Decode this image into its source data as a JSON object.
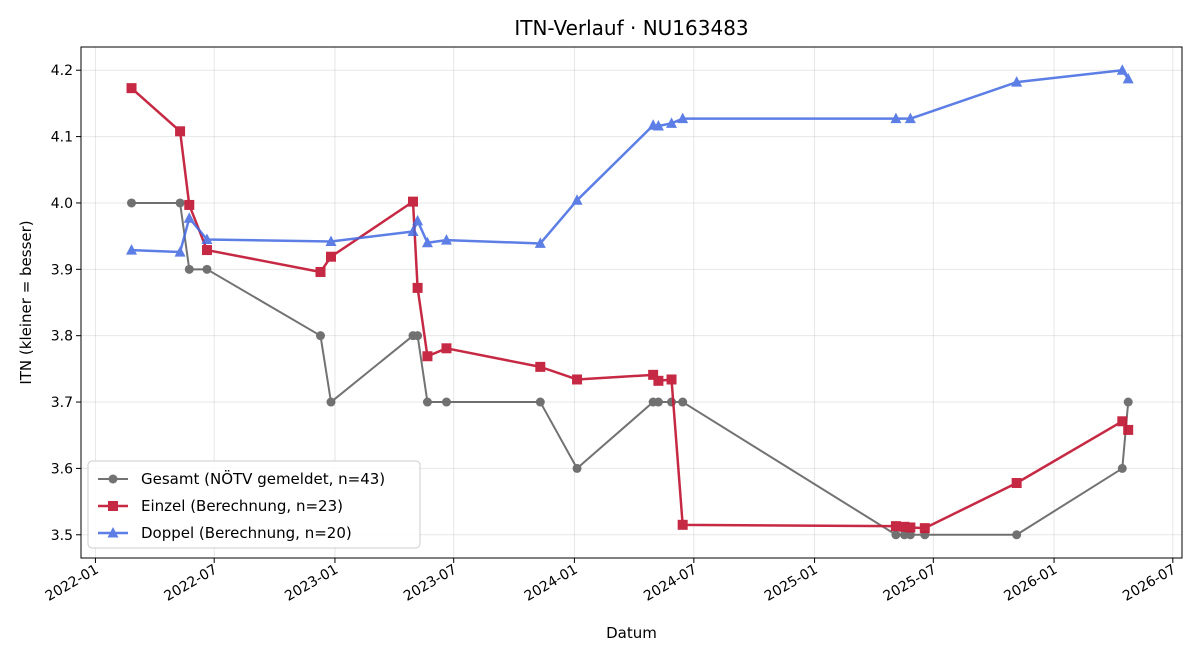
{
  "chart_data": {
    "type": "line",
    "title": "ITN-Verlauf · NU163483",
    "xlabel": "Datum",
    "ylabel": "ITN  (kleiner = besser)",
    "x_range": [
      "2021-12-10",
      "2026-07-15"
    ],
    "ylim": [
      3.465,
      4.235
    ],
    "yticks": [
      3.5,
      3.6,
      3.7,
      3.8,
      3.9,
      4.0,
      4.1,
      4.2
    ],
    "ytick_labels": [
      "3.5",
      "3.6",
      "3.7",
      "3.8",
      "3.9",
      "4.0",
      "4.1",
      "4.2"
    ],
    "xticks": [
      "2022-01-01",
      "2022-07-01",
      "2023-01-01",
      "2023-07-01",
      "2024-01-01",
      "2024-07-01",
      "2025-01-01",
      "2025-07-01",
      "2026-01-01",
      "2026-07-01"
    ],
    "xtick_labels": [
      "2022-01",
      "2022-07",
      "2023-01",
      "2023-07",
      "2024-01",
      "2024-07",
      "2025-01",
      "2025-07",
      "2026-01",
      "2026-07"
    ],
    "grid": true,
    "legend_position": "lower-left",
    "series": [
      {
        "name": "Gesamt (NÖTV gemeldet, n=43)",
        "color": "#444444",
        "marker": "circle",
        "points": [
          [
            "2022-02-25",
            4.0
          ],
          [
            "2022-05-10",
            4.0
          ],
          [
            "2022-05-24",
            3.9
          ],
          [
            "2022-06-20",
            3.9
          ],
          [
            "2022-12-10",
            3.8
          ],
          [
            "2022-12-26",
            3.7
          ],
          [
            "2023-04-30",
            3.8
          ],
          [
            "2023-05-07",
            3.8
          ],
          [
            "2023-05-22",
            3.7
          ],
          [
            "2023-06-20",
            3.7
          ],
          [
            "2023-11-10",
            3.7
          ],
          [
            "2024-01-05",
            3.6
          ],
          [
            "2024-04-30",
            3.7
          ],
          [
            "2024-05-08",
            3.7
          ],
          [
            "2024-05-28",
            3.7
          ],
          [
            "2024-06-14",
            3.7
          ],
          [
            "2025-05-05",
            3.5
          ],
          [
            "2025-05-18",
            3.5
          ],
          [
            "2025-05-27",
            3.5
          ],
          [
            "2025-06-18",
            3.5
          ],
          [
            "2025-11-05",
            3.5
          ],
          [
            "2026-04-15",
            3.6
          ],
          [
            "2026-04-24",
            3.7
          ]
        ]
      },
      {
        "name": "Einzel (Berechnung, n=23)",
        "color": "#c41e3a",
        "marker": "square",
        "points": [
          [
            "2022-02-25",
            4.173
          ],
          [
            "2022-05-10",
            4.108
          ],
          [
            "2022-05-24",
            3.997
          ],
          [
            "2022-06-20",
            3.929
          ],
          [
            "2022-12-10",
            3.896
          ],
          [
            "2022-12-26",
            3.919
          ],
          [
            "2023-04-30",
            4.002
          ],
          [
            "2023-05-07",
            3.872
          ],
          [
            "2023-05-22",
            3.769
          ],
          [
            "2023-06-20",
            3.781
          ],
          [
            "2023-11-10",
            3.753
          ],
          [
            "2024-01-05",
            3.734
          ],
          [
            "2024-04-30",
            3.741
          ],
          [
            "2024-05-08",
            3.732
          ],
          [
            "2024-05-28",
            3.734
          ],
          [
            "2024-06-14",
            3.515
          ],
          [
            "2025-05-05",
            3.513
          ],
          [
            "2025-05-18",
            3.512
          ],
          [
            "2025-05-27",
            3.511
          ],
          [
            "2025-06-18",
            3.51
          ],
          [
            "2025-11-05",
            3.578
          ],
          [
            "2026-04-15",
            3.671
          ],
          [
            "2026-04-24",
            3.658
          ]
        ]
      },
      {
        "name": "Doppel (Berechnung, n=20)",
        "color": "#4169e1",
        "marker": "triangle",
        "points": [
          [
            "2022-02-25",
            3.929
          ],
          [
            "2022-05-10",
            3.926
          ],
          [
            "2022-05-24",
            3.977
          ],
          [
            "2022-06-20",
            3.945
          ],
          [
            "2022-12-26",
            3.942
          ],
          [
            "2023-04-30",
            3.957
          ],
          [
            "2023-05-07",
            3.973
          ],
          [
            "2023-05-22",
            3.94
          ],
          [
            "2023-06-20",
            3.944
          ],
          [
            "2023-11-10",
            3.939
          ],
          [
            "2024-01-05",
            4.004
          ],
          [
            "2024-04-30",
            4.117
          ],
          [
            "2024-05-08",
            4.116
          ],
          [
            "2024-05-28",
            4.12
          ],
          [
            "2024-06-14",
            4.127
          ],
          [
            "2025-05-05",
            4.127
          ],
          [
            "2025-05-27",
            4.127
          ],
          [
            "2025-11-05",
            4.182
          ],
          [
            "2026-04-15",
            4.2
          ],
          [
            "2026-04-24",
            4.187
          ]
        ]
      }
    ]
  }
}
